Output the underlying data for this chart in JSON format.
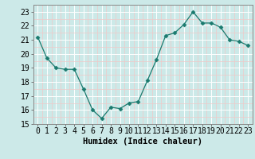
{
  "x": [
    0,
    1,
    2,
    3,
    4,
    5,
    6,
    7,
    8,
    9,
    10,
    11,
    12,
    13,
    14,
    15,
    16,
    17,
    18,
    19,
    20,
    21,
    22,
    23
  ],
  "y": [
    21.2,
    19.7,
    19.0,
    18.9,
    18.9,
    17.5,
    16.0,
    15.4,
    16.2,
    16.1,
    16.5,
    16.6,
    18.1,
    19.6,
    21.3,
    21.5,
    22.1,
    23.0,
    22.2,
    22.2,
    21.9,
    21.0,
    20.9,
    20.6
  ],
  "line_color": "#1a7a6e",
  "marker": "D",
  "marker_size": 2.5,
  "bg_color": "#cce9e8",
  "grid_major_color": "#ffffff",
  "grid_minor_color": "#f0c8c8",
  "xlabel": "Humidex (Indice chaleur)",
  "ylim": [
    15,
    23.5
  ],
  "yticks": [
    15,
    16,
    17,
    18,
    19,
    20,
    21,
    22,
    23
  ],
  "xticks": [
    0,
    1,
    2,
    3,
    4,
    5,
    6,
    7,
    8,
    9,
    10,
    11,
    12,
    13,
    14,
    15,
    16,
    17,
    18,
    19,
    20,
    21,
    22,
    23
  ],
  "xlabel_fontsize": 7.5,
  "tick_fontsize": 7.0
}
